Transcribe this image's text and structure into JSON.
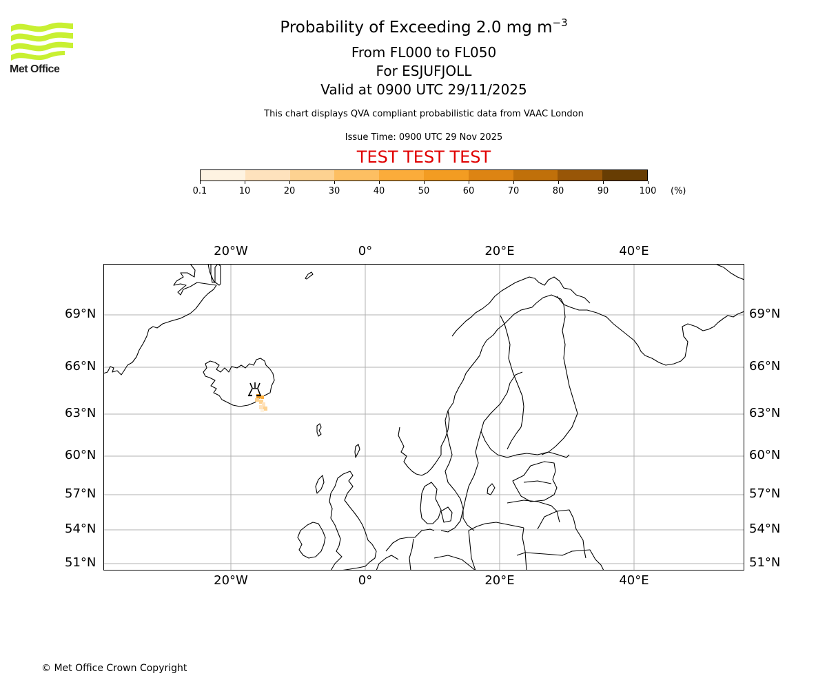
{
  "logo": {
    "name": "Met Office",
    "color": "#c8f032"
  },
  "header": {
    "title_main": "Probability of Exceeding 2.0 mg m",
    "title_superscript": "−3",
    "level_range": "From FL000 to FL050",
    "volcano": "For ESJUFJOLL",
    "valid_time": "Valid at 0900 UTC 29/11/2025",
    "subtitle": "This chart displays QVA compliant probabilistic data from VAAC London",
    "issue_time": "Issue Time: 0900 UTC 29 Nov 2025",
    "test_banner": "TEST TEST TEST",
    "test_color": "#e00000"
  },
  "colorbar": {
    "labels": [
      "0.1",
      "10",
      "20",
      "30",
      "40",
      "50",
      "60",
      "70",
      "80",
      "90",
      "100"
    ],
    "colors": [
      "#fef3e1",
      "#fee2bd",
      "#fdd291",
      "#fdbf62",
      "#fbac3a",
      "#f39c22",
      "#dd8413",
      "#c0700a",
      "#985607",
      "#673d03"
    ],
    "unit": "(%)"
  },
  "map": {
    "lon_labels": [
      "20°W",
      "0°",
      "20°E",
      "40°E"
    ],
    "lat_labels": [
      "69°N",
      "66°N",
      "63°N",
      "60°N",
      "57°N",
      "54°N",
      "51°N"
    ],
    "volcano_symbol": "volcano-icon",
    "gridline_color": "#b0b0b0",
    "plume_colors": [
      "#f39c22",
      "#fdd291",
      "#fee2bd"
    ]
  },
  "chart_data": {
    "type": "heatmap",
    "title": "Probability of Exceeding 2.0 mg m−3 — From FL000 to FL050 — For ESJUFJOLL — Valid at 0900 UTC 29/11/2025",
    "colorbar_levels": [
      0.1,
      10,
      20,
      30,
      40,
      50,
      60,
      70,
      80,
      90,
      100
    ],
    "colorbar_unit": "%",
    "lon_ticks": [
      -20,
      0,
      20,
      40
    ],
    "lat_ticks": [
      51,
      54,
      57,
      60,
      63,
      66,
      69
    ],
    "extent_approx": {
      "lon": [
        -39,
        56
      ],
      "lat": [
        50.5,
        72
      ]
    },
    "plume": {
      "source": "ESJUFJOLL (SE Iceland)",
      "peak_probability_band": "50-60",
      "extent": "small plume extending SE of source, mostly 0.1-30%"
    },
    "grid": true
  },
  "footer": {
    "copyright": "© Met Office Crown Copyright"
  }
}
